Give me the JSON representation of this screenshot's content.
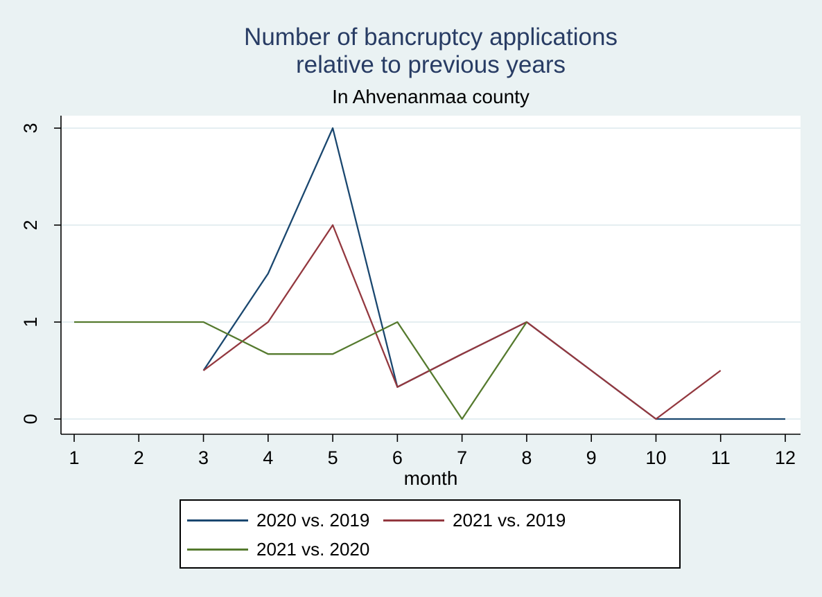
{
  "page": {
    "background_color": "#EAF2F3",
    "plot_background_color": "#FFFFFF",
    "grid_color": "#E4EEF1",
    "axis_color": "#000000",
    "title_color": "#283C64"
  },
  "title": {
    "line1": "Number of bancruptcy applications",
    "line2": "relative to previous years"
  },
  "subtitle": "In Ahvenanmaa county",
  "chart_data": {
    "type": "line",
    "title": "Number of bancruptcy applications relative to previous years",
    "subtitle": "In Ahvenanmaa county",
    "xlabel": "month",
    "ylabel": "",
    "xlim": [
      1,
      12
    ],
    "ylim": [
      0,
      3
    ],
    "x_ticks": [
      1,
      2,
      3,
      4,
      5,
      6,
      7,
      8,
      9,
      10,
      11,
      12
    ],
    "y_ticks": [
      0,
      1,
      2,
      3
    ],
    "grid": true,
    "legend_position": "bottom",
    "series": [
      {
        "name": "2020 vs. 2019",
        "color": "#1A476F",
        "x": [
          3,
          4,
          5,
          6,
          7,
          8,
          9,
          10,
          11,
          12
        ],
        "y": [
          0.5,
          1.5,
          3,
          0.33,
          0.67,
          1,
          0.5,
          0,
          0,
          0
        ]
      },
      {
        "name": "2021 vs. 2019",
        "color": "#93383F",
        "x": [
          3,
          4,
          5,
          6,
          7,
          8,
          9,
          10,
          11
        ],
        "y": [
          0.5,
          1,
          2,
          0.33,
          0.67,
          1,
          0.5,
          0,
          0.5
        ]
      },
      {
        "name": "2021 vs. 2020",
        "color": "#557A2E",
        "x": [
          1,
          2,
          3,
          4,
          5,
          6,
          7,
          8
        ],
        "y": [
          1,
          1,
          1,
          0.67,
          0.67,
          1,
          0,
          1
        ]
      }
    ]
  },
  "legend": {
    "items": [
      {
        "label": "2020 vs. 2019",
        "color": "#1A476F"
      },
      {
        "label": "2021 vs. 2019",
        "color": "#93383F"
      },
      {
        "label": "2021 vs. 2020",
        "color": "#557A2E"
      }
    ]
  }
}
